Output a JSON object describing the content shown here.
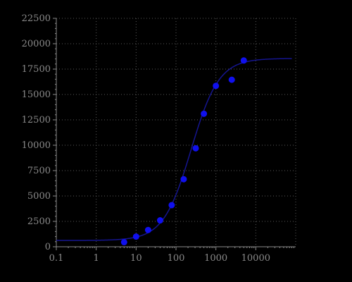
{
  "chart_data": {
    "type": "scatter",
    "title": "",
    "xlabel": "",
    "ylabel": "",
    "x_scale": "log",
    "xlim": [
      0.1,
      100000
    ],
    "ylim": [
      0,
      22500
    ],
    "grid": true,
    "x_ticks": [
      {
        "value": 0.1,
        "label": "0.1"
      },
      {
        "value": 1,
        "label": "1"
      },
      {
        "value": 10,
        "label": "10"
      },
      {
        "value": 100,
        "label": "100"
      },
      {
        "value": 1000,
        "label": "1000"
      },
      {
        "value": 10000,
        "label": "10000"
      }
    ],
    "y_ticks": [
      {
        "value": 0,
        "label": "0"
      },
      {
        "value": 2500,
        "label": "2500"
      },
      {
        "value": 5000,
        "label": "5000"
      },
      {
        "value": 7500,
        "label": "7500"
      },
      {
        "value": 10000,
        "label": "10000"
      },
      {
        "value": 12500,
        "label": "12500"
      },
      {
        "value": 15000,
        "label": "15000"
      },
      {
        "value": 17500,
        "label": "17500"
      },
      {
        "value": 20000,
        "label": "20000"
      },
      {
        "value": 22500,
        "label": "22500"
      }
    ],
    "series": [
      {
        "type": "scatter",
        "points": [
          {
            "x": 5,
            "y": 450
          },
          {
            "x": 10,
            "y": 1000
          },
          {
            "x": 20,
            "y": 1650
          },
          {
            "x": 40,
            "y": 2600
          },
          {
            "x": 78,
            "y": 4100
          },
          {
            "x": 156,
            "y": 6650
          },
          {
            "x": 312,
            "y": 9700
          },
          {
            "x": 500,
            "y": 13100
          },
          {
            "x": 1000,
            "y": 15850
          },
          {
            "x": 2500,
            "y": 16450
          },
          {
            "x": 5000,
            "y": 18350
          }
        ]
      },
      {
        "type": "line",
        "fit": "four-parameter-logistic",
        "params": {
          "bottom": 620,
          "top": 18550,
          "ec50": 240,
          "hill": 1.25
        },
        "x_range": [
          0.1,
          80000
        ]
      }
    ],
    "colors": {
      "background": "#000000",
      "axis": "#8a8a8a",
      "grid": "#5a5a5a",
      "tick_text": "#8a8a8a",
      "point": "#1010ee",
      "curve": "#15158f"
    }
  }
}
